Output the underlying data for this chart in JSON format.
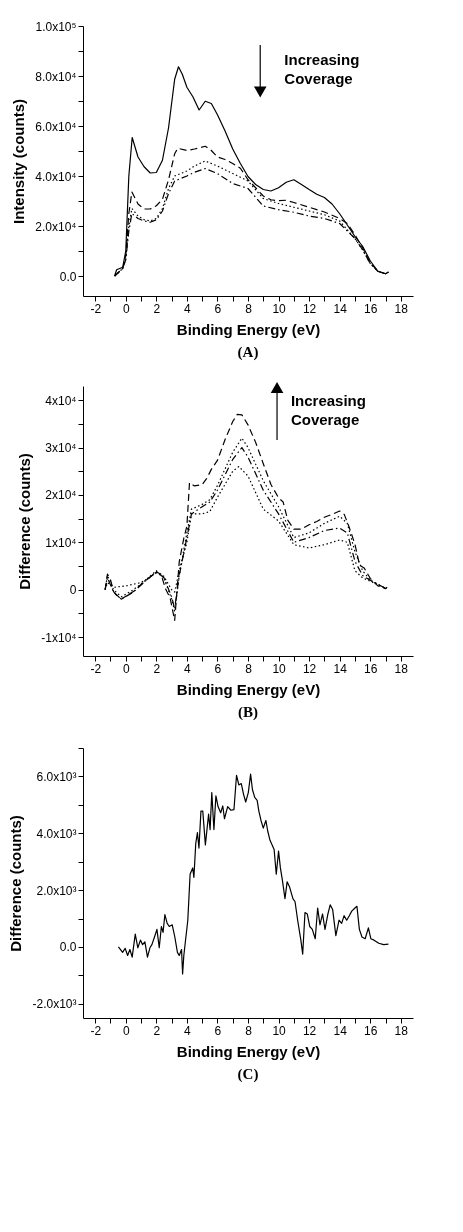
{
  "chart_data": [
    {
      "type": "line",
      "title": "(A)",
      "xlabel": "Binding Energy (eV)",
      "ylabel": "Intensity (counts)",
      "annotations": [
        "Increasing Coverage"
      ],
      "xlim": [
        -2.8,
        18.8
      ],
      "ylim": [
        -8000,
        100000
      ],
      "xticks": [
        -2,
        {
          "value": -1,
          "label": null
        },
        0,
        {
          "value": 1,
          "label": null
        },
        2,
        {
          "value": 3,
          "label": null
        },
        4,
        {
          "value": 5,
          "label": null
        },
        6,
        {
          "value": 7,
          "label": null
        },
        8,
        {
          "value": 9,
          "label": null
        },
        10,
        {
          "value": 11,
          "label": null
        },
        12,
        {
          "value": 13,
          "label": null
        },
        14,
        {
          "value": 15,
          "label": null
        },
        16,
        {
          "value": 17,
          "label": null
        },
        18
      ],
      "yticks": [
        {
          "value": 0,
          "label": "0.0"
        },
        {
          "value": 10000,
          "label": null
        },
        {
          "value": 20000,
          "label": "2.0x10⁴"
        },
        {
          "value": 30000,
          "label": null
        },
        {
          "value": 40000,
          "label": "4.0x10⁴"
        },
        {
          "value": 50000,
          "label": null
        },
        {
          "value": 60000,
          "label": "6.0x10⁴"
        },
        {
          "value": 70000,
          "label": null
        },
        {
          "value": 80000,
          "label": "8.0x10⁴"
        },
        {
          "value": 90000,
          "label": null
        },
        {
          "value": 100000,
          "label": "1.0x10⁵"
        }
      ],
      "series": [
        {
          "color": "#000000",
          "line_style": "solid",
          "x": [
            -0.73,
            -0.6,
            -0.2,
            0.0,
            0.2,
            0.42,
            0.8,
            1.2,
            1.6,
            2.0,
            2.4,
            2.8,
            3.2,
            3.45,
            3.7,
            4.0,
            4.4,
            4.8,
            5.2,
            5.6,
            6.0,
            6.5,
            7.0,
            7.5,
            8.0,
            8.5,
            9.0,
            9.5,
            10.0,
            10.5,
            11.0,
            11.5,
            12.0,
            12.5,
            13.0,
            13.5,
            14.0,
            14.5,
            15.0,
            15.5,
            16.0,
            16.5,
            17.0,
            17.2
          ],
          "values": [
            0,
            2500,
            3500,
            10000,
            40000,
            55400,
            47600,
            43700,
            41200,
            41400,
            46300,
            59300,
            78700,
            83700,
            80700,
            75500,
            71600,
            66400,
            69900,
            69000,
            64500,
            58000,
            50800,
            45000,
            39800,
            36600,
            34600,
            34000,
            35300,
            37500,
            38500,
            36600,
            34600,
            32700,
            31400,
            28800,
            24900,
            20400,
            15800,
            11900,
            6100,
            1900,
            900,
            1600
          ]
        },
        {
          "color": "#000000",
          "line_style": "dashed",
          "x": [
            -0.73,
            -0.2,
            0.0,
            0.2,
            0.4,
            0.8,
            1.2,
            1.6,
            2.0,
            2.4,
            2.8,
            3.2,
            3.4,
            4.0,
            4.5,
            5.2,
            5.6,
            6.0,
            6.5,
            7.0,
            7.5,
            8.0,
            8.5,
            9.0,
            9.5,
            10.0,
            10.5,
            11.0,
            12.0,
            13.0,
            14.0,
            14.5,
            15.0,
            15.5,
            16.0,
            16.5,
            17.0,
            17.2
          ],
          "values": [
            0,
            3000,
            8000,
            25000,
            33600,
            28800,
            26800,
            26800,
            28100,
            30700,
            38500,
            48900,
            51100,
            50200,
            50800,
            51900,
            50200,
            47600,
            46600,
            45000,
            43100,
            38500,
            35300,
            32000,
            30500,
            30100,
            30300,
            29400,
            27500,
            25600,
            23000,
            21000,
            16500,
            11300,
            5400,
            1900,
            900,
            1600
          ]
        },
        {
          "color": "#000000",
          "line_style": "dotted",
          "x": [
            -0.73,
            -0.2,
            0.0,
            0.2,
            0.4,
            0.8,
            1.2,
            1.6,
            2.0,
            2.4,
            2.8,
            3.2,
            4.0,
            4.5,
            5.2,
            6.0,
            7.0,
            8.0,
            9.0,
            10.0,
            11.0,
            12.0,
            13.0,
            14.0,
            15.0,
            15.5,
            16.0,
            16.5,
            17.0,
            17.2
          ],
          "values": [
            0,
            3000,
            7000,
            20000,
            27000,
            24000,
            22500,
            22000,
            23000,
            27000,
            35000,
            40000,
            42000,
            44000,
            46000,
            44000,
            41000,
            38000,
            31000,
            29000,
            27500,
            26000,
            24500,
            22000,
            15000,
            10500,
            5000,
            1900,
            900,
            1600
          ]
        },
        {
          "color": "#000000",
          "line_style": "dashdot",
          "x": [
            -0.73,
            -0.2,
            0.0,
            0.2,
            0.4,
            0.8,
            1.2,
            1.6,
            2.0,
            2.4,
            2.8,
            3.2,
            4.0,
            4.5,
            5.2,
            6.0,
            7.0,
            8.0,
            9.0,
            10.0,
            11.0,
            12.0,
            13.0,
            14.0,
            15.0,
            15.5,
            16.0,
            16.5,
            17.0,
            17.2
          ],
          "values": [
            0,
            3000,
            6500,
            18000,
            25000,
            23000,
            22000,
            21500,
            22500,
            26000,
            33000,
            38000,
            40000,
            41500,
            43000,
            41000,
            37000,
            35000,
            28000,
            26500,
            25500,
            24000,
            23000,
            21000,
            15000,
            10500,
            5000,
            1900,
            900,
            1600
          ]
        }
      ]
    },
    {
      "type": "line",
      "title": "(B)",
      "xlabel": "Binding Energy (eV)",
      "ylabel": "Difference (counts)",
      "annotations": [
        "Increasing Coverage"
      ],
      "xlim": [
        -2.8,
        18.8
      ],
      "ylim": [
        -14000,
        43000
      ],
      "xticks": [
        -2,
        {
          "value": -1,
          "label": null
        },
        0,
        {
          "value": 1,
          "label": null
        },
        2,
        {
          "value": 3,
          "label": null
        },
        4,
        {
          "value": 5,
          "label": null
        },
        6,
        {
          "value": 7,
          "label": null
        },
        8,
        {
          "value": 9,
          "label": null
        },
        10,
        {
          "value": 11,
          "label": null
        },
        12,
        {
          "value": 13,
          "label": null
        },
        14,
        {
          "value": 15,
          "label": null
        },
        16,
        {
          "value": 17,
          "label": null
        },
        18
      ],
      "yticks": [
        {
          "value": -10000,
          "label": "-1x10⁴"
        },
        {
          "value": -5000,
          "label": null
        },
        0,
        {
          "value": 5000,
          "label": null
        },
        {
          "value": 10000,
          "label": "1x10⁴"
        },
        {
          "value": 15000,
          "label": null
        },
        {
          "value": 20000,
          "label": "2x10⁴"
        },
        {
          "value": 25000,
          "label": null
        },
        {
          "value": 30000,
          "label": "3x10⁴"
        },
        {
          "value": 35000,
          "label": null
        },
        {
          "value": 40000,
          "label": "4x10⁴"
        }
      ],
      "series": [
        {
          "color": "#000000",
          "line_style": "dashed",
          "x": [
            -1.35,
            -1.2,
            -1.0,
            -0.8,
            -0.6,
            -0.3,
            0.0,
            0.5,
            1.0,
            1.5,
            2.0,
            2.3,
            2.6,
            2.9,
            3.2,
            3.5,
            3.8,
            4.0,
            4.17,
            4.5,
            5.0,
            5.3,
            5.6,
            6.0,
            6.5,
            7.0,
            7.3,
            7.6,
            8.0,
            8.5,
            9.0,
            9.5,
            10.0,
            10.3,
            10.6,
            11.0,
            11.5,
            12.0,
            12.5,
            13.0,
            13.5,
            14.0,
            14.3,
            14.6,
            15.0,
            15.3,
            15.6,
            16.0,
            16.5,
            17.0,
            17.1
          ],
          "values": [
            0,
            3300,
            2100,
            -400,
            -1200,
            -2000,
            -1400,
            -400,
            1100,
            2400,
            3700,
            3300,
            200,
            -1700,
            -6500,
            5900,
            10900,
            13400,
            22600,
            21900,
            22200,
            23500,
            25400,
            27300,
            31700,
            35500,
            37000,
            36900,
            34800,
            31100,
            26600,
            22200,
            19400,
            18500,
            14700,
            12800,
            12800,
            13700,
            14400,
            15300,
            15900,
            16600,
            15900,
            13400,
            9600,
            5200,
            4600,
            2400,
            800,
            200,
            500
          ]
        },
        {
          "color": "#000000",
          "line_style": "dotted",
          "x": [
            -1.35,
            -1.2,
            -0.8,
            -0.3,
            0.5,
            1.0,
            2.0,
            2.5,
            3.0,
            3.2,
            3.5,
            4.0,
            4.3,
            5.0,
            5.5,
            6.0,
            7.0,
            7.6,
            8.0,
            9.0,
            10.0,
            11.0,
            12.0,
            13.0,
            14.0,
            14.5,
            15.0,
            15.5,
            16.0,
            17.0,
            17.1
          ],
          "values": [
            0,
            3000,
            0,
            -1500,
            0,
            1200,
            4000,
            2500,
            -2000,
            -4500,
            3000,
            12000,
            17000,
            18000,
            19000,
            22000,
            29000,
            32000,
            30000,
            23000,
            17500,
            11000,
            12000,
            14000,
            15500,
            14000,
            8000,
            4000,
            2000,
            300,
            500
          ]
        },
        {
          "color": "#000000",
          "line_style": "dashdot",
          "x": [
            -1.35,
            -1.2,
            -0.8,
            -0.3,
            0.5,
            1.0,
            2.0,
            2.5,
            3.0,
            3.2,
            3.5,
            4.0,
            4.3,
            5.0,
            5.5,
            6.0,
            7.0,
            7.6,
            8.0,
            9.0,
            10.0,
            11.0,
            12.0,
            13.0,
            14.0,
            14.5,
            15.0,
            15.5,
            16.0,
            17.0,
            17.1
          ],
          "values": [
            0,
            2500,
            -500,
            -2000,
            -500,
            1000,
            3800,
            2500,
            -1500,
            -4000,
            3000,
            11000,
            16000,
            17500,
            18500,
            21000,
            27500,
            30000,
            28000,
            21000,
            16000,
            10000,
            11000,
            12500,
            13000,
            12000,
            6000,
            3000,
            2000,
            300,
            500
          ]
        },
        {
          "color": "#000000",
          "line_style": "dotted",
          "x": [
            -1.35,
            -1.2,
            -0.8,
            0.0,
            1.0,
            2.0,
            2.5,
            3.0,
            3.2,
            3.5,
            4.0,
            4.3,
            5.0,
            5.5,
            6.0,
            7.0,
            7.4,
            8.0,
            9.0,
            10.0,
            11.0,
            12.0,
            13.0,
            14.0,
            14.5,
            15.0,
            15.5,
            16.0,
            17.0,
            17.1
          ],
          "values": [
            0,
            1500,
            500,
            800,
            1500,
            3500,
            2800,
            0,
            -500,
            4000,
            10000,
            16000,
            16000,
            16500,
            19500,
            25000,
            26000,
            24000,
            17000,
            14500,
            9500,
            8800,
            9500,
            10500,
            10000,
            4000,
            2500,
            1800,
            300,
            500
          ]
        }
      ]
    },
    {
      "type": "line",
      "title": "(C)",
      "xlabel": "Binding Energy (eV)",
      "ylabel": "Difference (counts)",
      "xlim": [
        -2.8,
        18.8
      ],
      "ylim": [
        -2500,
        7000
      ],
      "xticks": [
        -2,
        {
          "value": -1,
          "label": null
        },
        0,
        {
          "value": 1,
          "label": null
        },
        2,
        {
          "value": 3,
          "label": null
        },
        4,
        {
          "value": 5,
          "label": null
        },
        6,
        {
          "value": 7,
          "label": null
        },
        8,
        {
          "value": 9,
          "label": null
        },
        10,
        {
          "value": 11,
          "label": null
        },
        12,
        {
          "value": 13,
          "label": null
        },
        14,
        {
          "value": 15,
          "label": null
        },
        16,
        {
          "value": 17,
          "label": null
        },
        18
      ],
      "yticks": [
        {
          "value": -2000,
          "label": "-2.0x10³"
        },
        {
          "value": -1000,
          "label": null
        },
        {
          "value": 0,
          "label": "0.0"
        },
        {
          "value": 1000,
          "label": null
        },
        {
          "value": 2000,
          "label": "2.0x10³"
        },
        {
          "value": 3000,
          "label": null
        },
        {
          "value": 4000,
          "label": "4.0x10³"
        },
        {
          "value": 5000,
          "label": null
        },
        {
          "value": 6000,
          "label": "6.0x10³"
        },
        {
          "value": 7000,
          "label": null
        }
      ],
      "series": [
        {
          "color": "#000000",
          "line_style": "solid",
          "x": [
            -0.48,
            -0.21,
            -0.04,
            0.12,
            0.27,
            0.42,
            0.62,
            0.79,
            0.96,
            1.1,
            1.25,
            1.42,
            1.58,
            1.71,
            1.88,
            2.04,
            2.19,
            2.33,
            2.44,
            2.56,
            2.71,
            2.85,
            3.04,
            3.21,
            3.38,
            3.5,
            3.65,
            3.72,
            3.8,
            4.06,
            4.21,
            4.38,
            4.46,
            4.58,
            4.69,
            4.79,
            4.92,
            5.04,
            5.21,
            5.42,
            5.52,
            5.63,
            5.77,
            5.9,
            6.04,
            6.21,
            6.35,
            6.46,
            6.67,
            6.88,
            7.08,
            7.25,
            7.4,
            7.56,
            7.71,
            7.85,
            8.02,
            8.17,
            8.29,
            8.44,
            8.6,
            8.71,
            8.85,
            9.0,
            9.17,
            9.29,
            9.44,
            9.58,
            9.71,
            9.85,
            10.0,
            10.12,
            10.25,
            10.42,
            10.56,
            10.71,
            10.94,
            11.08,
            11.25,
            11.46,
            11.58,
            11.73,
            11.88,
            12.04,
            12.21,
            12.4,
            12.56,
            12.71,
            12.88,
            13.04,
            13.23,
            13.38,
            13.54,
            13.75,
            13.96,
            14.13,
            14.29,
            14.46,
            14.63,
            14.79,
            15.0,
            15.13,
            15.29,
            15.46,
            15.67,
            15.88,
            16.04,
            16.25,
            16.56,
            16.88,
            17.19
          ],
          "values": [
            0,
            -190,
            -50,
            -300,
            -90,
            -360,
            450,
            -30,
            240,
            80,
            180,
            -360,
            -30,
            80,
            350,
            620,
            -30,
            720,
            510,
            1140,
            830,
            720,
            780,
            350,
            -190,
            -300,
            -90,
            -950,
            -300,
            940,
            2560,
            2780,
            2450,
            3640,
            4020,
            3480,
            4780,
            4780,
            3590,
            4670,
            4130,
            5430,
            4130,
            5320,
            4940,
            4720,
            4960,
            4510,
            4940,
            4810,
            4830,
            6040,
            5700,
            5750,
            5370,
            5100,
            5430,
            6080,
            5540,
            5260,
            5160,
            4780,
            4450,
            4180,
            4450,
            4080,
            3750,
            3590,
            3430,
            2560,
            3370,
            2780,
            2350,
            1700,
            2290,
            2130,
            1700,
            1590,
            940,
            240,
            -250,
            1210,
            1160,
            720,
            620,
            290,
            1370,
            780,
            1160,
            620,
            1160,
            1480,
            1320,
            400,
            940,
            830,
            1100,
            940,
            1100,
            1260,
            1370,
            1430,
            620,
            350,
            290,
            670,
            290,
            240,
            130,
            80,
            100
          ]
        }
      ]
    }
  ]
}
